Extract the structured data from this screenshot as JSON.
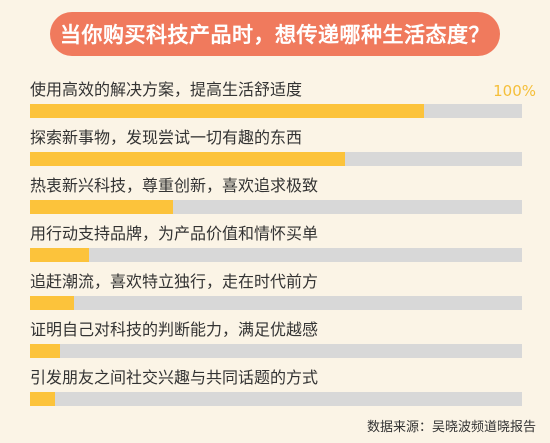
{
  "header": {
    "title": "当你购买科技产品时，想传递哪种生活态度？"
  },
  "axis": {
    "max_label": "100%"
  },
  "footer": {
    "source": "数据来源：吴晓波频道晓报告"
  },
  "colors": {
    "title_bg": "#f07a5d",
    "bar_fill": "#fcc33b",
    "bar_track": "#d8d8d8",
    "background": "#fbf4e6"
  },
  "chart_data": {
    "type": "bar",
    "orientation": "horizontal",
    "title": "当你购买科技产品时，想传递哪种生活态度？",
    "categories": [
      "使用高效的解决方案，提高生活舒适度",
      "探索新事物，发现尝试一切有趣的东西",
      "热衷新兴科技，尊重创新，喜欢追求极致",
      "用行动支持品牌，为产品价值和情怀买单",
      "追赶潮流，喜欢特立独行，走在时代前方",
      "证明自己对科技的判断能力，满足优越感",
      "引发朋友之间社交兴趣与共同话题的方式"
    ],
    "values": [
      80,
      64,
      29,
      12,
      9,
      6,
      5
    ],
    "xlim": [
      0,
      100
    ],
    "tick_labels": [
      "100%"
    ],
    "grid": false,
    "legend": "none"
  }
}
